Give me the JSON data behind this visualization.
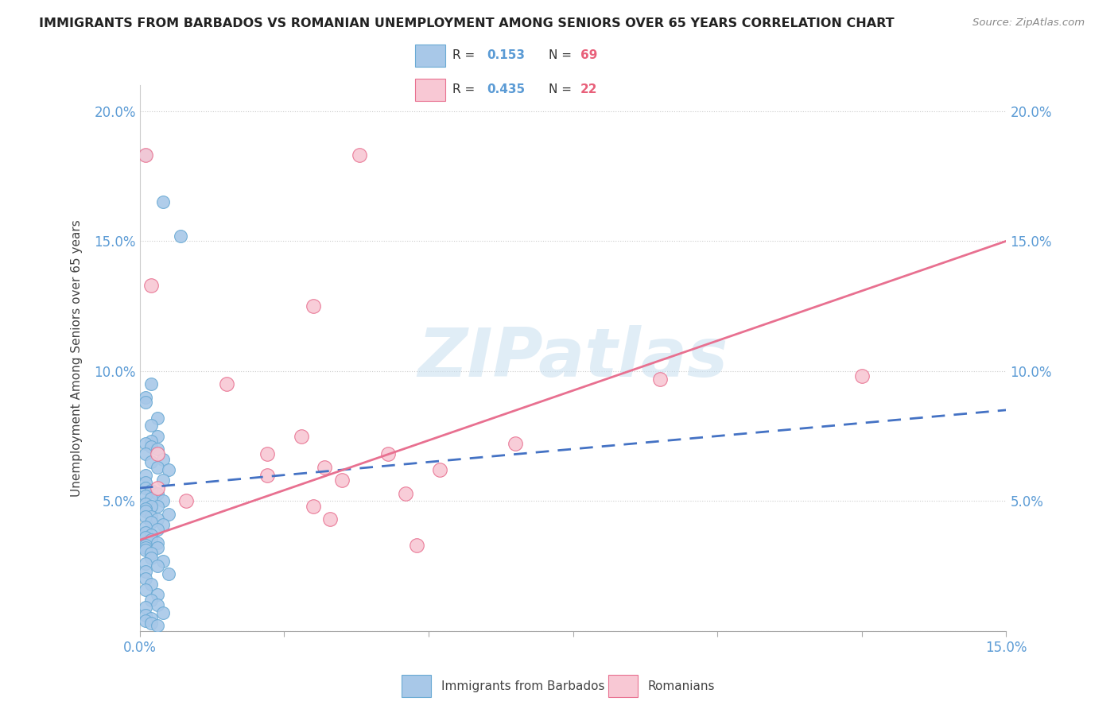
{
  "title": "IMMIGRANTS FROM BARBADOS VS ROMANIAN UNEMPLOYMENT AMONG SENIORS OVER 65 YEARS CORRELATION CHART",
  "source": "Source: ZipAtlas.com",
  "ylabel": "Unemployment Among Seniors over 65 years",
  "xlim": [
    0.0,
    0.15
  ],
  "ylim": [
    0.0,
    0.21
  ],
  "xticks": [
    0.0,
    0.025,
    0.05,
    0.075,
    0.1,
    0.125,
    0.15
  ],
  "yticks": [
    0.0,
    0.05,
    0.1,
    0.15,
    0.2
  ],
  "blue_color": "#a8c8e8",
  "blue_edge_color": "#6aaad4",
  "pink_color": "#f8c8d4",
  "pink_edge_color": "#e87090",
  "blue_line_color": "#4472c4",
  "pink_line_color": "#e87090",
  "watermark_color": "#c8dff0",
  "blue_x": [
    0.001,
    0.004,
    0.007,
    0.001,
    0.002,
    0.001,
    0.003,
    0.002,
    0.003,
    0.002,
    0.001,
    0.002,
    0.003,
    0.001,
    0.004,
    0.002,
    0.003,
    0.005,
    0.001,
    0.004,
    0.001,
    0.001,
    0.002,
    0.003,
    0.001,
    0.002,
    0.004,
    0.001,
    0.003,
    0.002,
    0.001,
    0.001,
    0.005,
    0.002,
    0.001,
    0.003,
    0.002,
    0.004,
    0.001,
    0.003,
    0.001,
    0.002,
    0.001,
    0.002,
    0.003,
    0.001,
    0.001,
    0.003,
    0.001,
    0.002,
    0.002,
    0.004,
    0.001,
    0.003,
    0.001,
    0.005,
    0.001,
    0.002,
    0.001,
    0.003,
    0.002,
    0.003,
    0.001,
    0.004,
    0.001,
    0.002,
    0.001,
    0.002,
    0.003
  ],
  "blue_y": [
    0.183,
    0.165,
    0.152,
    0.09,
    0.095,
    0.088,
    0.082,
    0.079,
    0.075,
    0.073,
    0.072,
    0.071,
    0.07,
    0.068,
    0.066,
    0.065,
    0.063,
    0.062,
    0.06,
    0.058,
    0.057,
    0.055,
    0.054,
    0.053,
    0.052,
    0.051,
    0.05,
    0.049,
    0.048,
    0.048,
    0.047,
    0.046,
    0.045,
    0.044,
    0.044,
    0.043,
    0.042,
    0.041,
    0.04,
    0.039,
    0.038,
    0.037,
    0.036,
    0.035,
    0.034,
    0.033,
    0.032,
    0.032,
    0.031,
    0.03,
    0.028,
    0.027,
    0.026,
    0.025,
    0.023,
    0.022,
    0.02,
    0.018,
    0.016,
    0.014,
    0.012,
    0.01,
    0.009,
    0.007,
    0.006,
    0.005,
    0.004,
    0.003,
    0.002
  ],
  "pink_x": [
    0.001,
    0.002,
    0.03,
    0.038,
    0.003,
    0.015,
    0.022,
    0.028,
    0.043,
    0.052,
    0.035,
    0.046,
    0.03,
    0.033,
    0.09,
    0.003,
    0.008,
    0.022,
    0.048,
    0.032,
    0.065,
    0.125
  ],
  "pink_y": [
    0.183,
    0.133,
    0.125,
    0.183,
    0.068,
    0.095,
    0.068,
    0.075,
    0.068,
    0.062,
    0.058,
    0.053,
    0.048,
    0.043,
    0.097,
    0.055,
    0.05,
    0.06,
    0.033,
    0.063,
    0.072,
    0.098
  ],
  "blue_trend_x0": 0.0,
  "blue_trend_y0": 0.055,
  "blue_trend_x1": 0.15,
  "blue_trend_y1": 0.085,
  "pink_trend_x0": 0.0,
  "pink_trend_y0": 0.035,
  "pink_trend_x1": 0.15,
  "pink_trend_y1": 0.15
}
